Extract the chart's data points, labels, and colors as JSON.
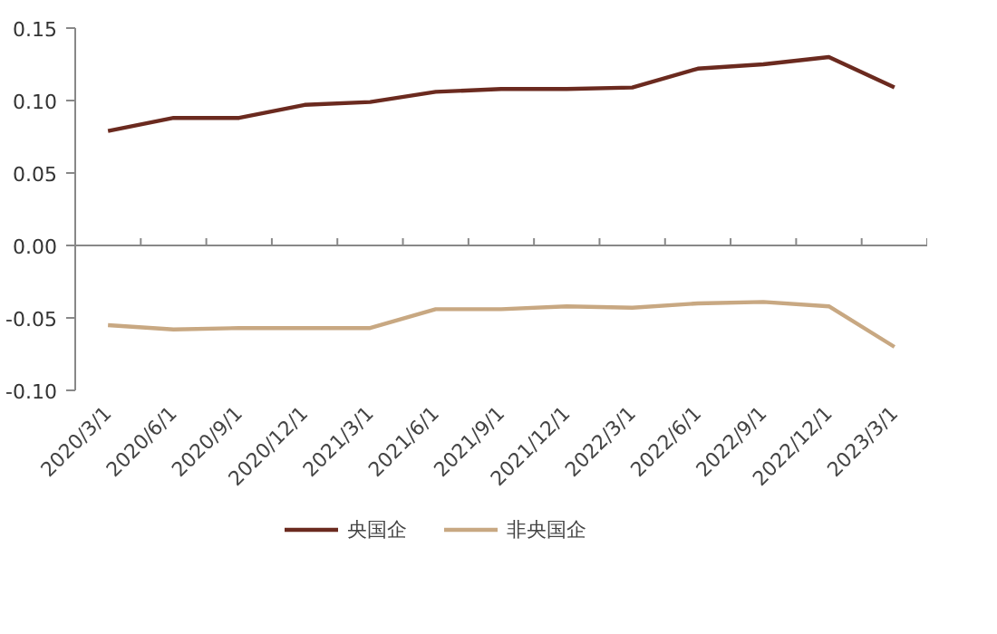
{
  "chart_data": {
    "type": "line",
    "categories": [
      "2020/3/1",
      "2020/6/1",
      "2020/9/1",
      "2020/12/1",
      "2021/3/1",
      "2021/6/1",
      "2021/9/1",
      "2021/12/1",
      "2022/3/1",
      "2022/6/1",
      "2022/9/1",
      "2022/12/1",
      "2023/3/1"
    ],
    "series": [
      {
        "name": "央国企",
        "color": "#6b2a1f",
        "values": [
          0.079,
          0.088,
          0.088,
          0.097,
          0.099,
          0.106,
          0.108,
          0.108,
          0.109,
          0.122,
          0.125,
          0.13,
          0.109
        ]
      },
      {
        "name": "非央国企",
        "color": "#c8a882",
        "values": [
          -0.055,
          -0.058,
          -0.057,
          -0.057,
          -0.057,
          -0.044,
          -0.044,
          -0.042,
          -0.043,
          -0.04,
          -0.039,
          -0.042,
          -0.07
        ]
      }
    ],
    "ylim": [
      -0.1,
      0.15
    ],
    "yticks": [
      {
        "value": -0.1,
        "label": "-0.10"
      },
      {
        "value": -0.05,
        "label": "-0.05"
      },
      {
        "value": 0,
        "label": "0.00"
      },
      {
        "value": 0.05,
        "label": "0.05"
      },
      {
        "value": 0.1,
        "label": "0.10"
      },
      {
        "value": 0.15,
        "label": "0.15"
      }
    ],
    "legend": "bottom",
    "marker": "none",
    "line_style": "solid"
  }
}
